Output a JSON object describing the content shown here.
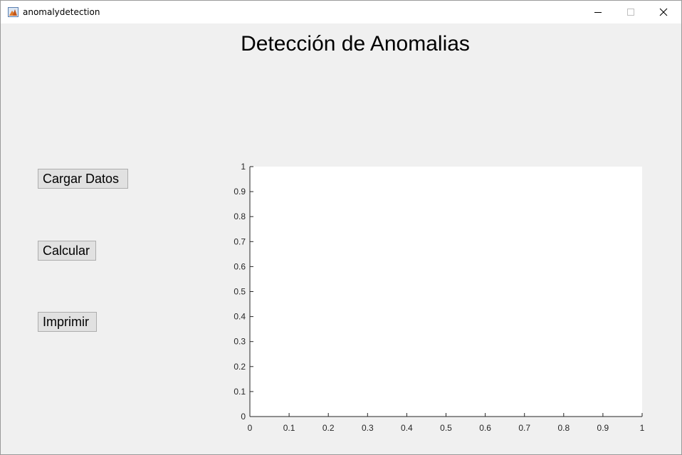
{
  "window": {
    "title": "anomalydetection"
  },
  "figure": {
    "title": "Detección de Anomalias"
  },
  "buttons": {
    "load": "Cargar Datos",
    "calculate": "Calcular",
    "print": "Imprimir"
  },
  "icons": {
    "app": "matlab-icon",
    "minimize": "minimize-icon",
    "maximize": "maximize-icon",
    "close": "close-icon"
  },
  "chart_data": {
    "type": "line",
    "title": "",
    "xlabel": "",
    "ylabel": "",
    "xlim": [
      0,
      1
    ],
    "ylim": [
      0,
      1
    ],
    "x_ticks": [
      "0",
      "0.1",
      "0.2",
      "0.3",
      "0.4",
      "0.5",
      "0.6",
      "0.7",
      "0.8",
      "0.9",
      "1"
    ],
    "y_ticks": [
      "0",
      "0.1",
      "0.2",
      "0.3",
      "0.4",
      "0.5",
      "0.6",
      "0.7",
      "0.8",
      "0.9",
      "1"
    ],
    "series": [],
    "grid": false
  }
}
